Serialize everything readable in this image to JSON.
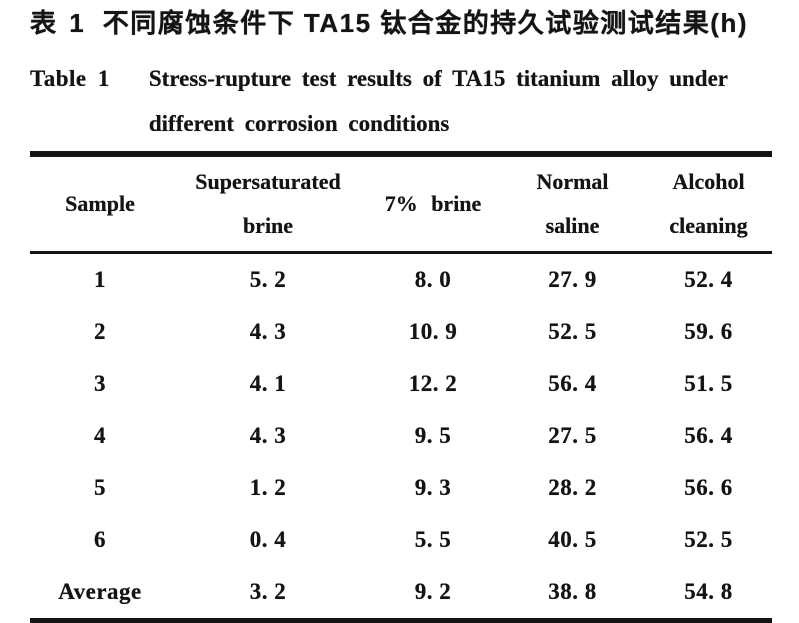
{
  "page": {
    "background": "#ffffff",
    "ink_color": "#141414"
  },
  "caption_cn": {
    "label": "表 1",
    "text": "不同腐蚀条件下 TA15 钛合金的持久试验测试结果(h)"
  },
  "caption_en": {
    "label": "Table 1",
    "line1": "Stress-rupture test results of TA15 titanium alloy under",
    "line2": "different corrosion conditions"
  },
  "table": {
    "headers": [
      {
        "line1": "Sample",
        "line2": ""
      },
      {
        "line1": "Supersaturated",
        "line2": "brine"
      },
      {
        "line1": "7% brine",
        "line2": ""
      },
      {
        "line1": "Normal",
        "line2": "saline"
      },
      {
        "line1": "Alcohol",
        "line2": "cleaning"
      }
    ],
    "rows": [
      {
        "cells": [
          "1",
          "5. 2",
          "8. 0",
          "27. 9",
          "52. 4"
        ]
      },
      {
        "cells": [
          "2",
          "4. 3",
          "10. 9",
          "52. 5",
          "59. 6"
        ]
      },
      {
        "cells": [
          "3",
          "4. 1",
          "12. 2",
          "56. 4",
          "51. 5"
        ]
      },
      {
        "cells": [
          "4",
          "4. 3",
          "9. 5",
          "27. 5",
          "56. 4"
        ]
      },
      {
        "cells": [
          "5",
          "1. 2",
          "9. 3",
          "28. 2",
          "56. 6"
        ]
      },
      {
        "cells": [
          "6",
          "0. 4",
          "5. 5",
          "40. 5",
          "52. 5"
        ]
      },
      {
        "cells": [
          "Average",
          "3. 2",
          "9. 2",
          "38. 8",
          "54. 8"
        ]
      }
    ]
  },
  "chart_data": {
    "type": "table",
    "title_cn": "表 1 不同腐蚀条件下 TA15 钛合金的持久试验测试结果(h)",
    "title_en": "Table 1 Stress-rupture test results of TA15 titanium alloy under different corrosion conditions",
    "unit": "h",
    "columns": [
      "Sample",
      "Supersaturated brine",
      "7% brine",
      "Normal saline",
      "Alcohol cleaning"
    ],
    "samples": [
      "1",
      "2",
      "3",
      "4",
      "5",
      "6",
      "Average"
    ],
    "series": [
      {
        "name": "Supersaturated brine",
        "values": [
          5.2,
          4.3,
          4.1,
          4.3,
          1.2,
          0.4,
          3.2
        ]
      },
      {
        "name": "7% brine",
        "values": [
          8.0,
          10.9,
          12.2,
          9.5,
          9.3,
          5.5,
          9.2
        ]
      },
      {
        "name": "Normal saline",
        "values": [
          27.9,
          52.5,
          56.4,
          27.5,
          28.2,
          40.5,
          38.8
        ]
      },
      {
        "name": "Alcohol cleaning",
        "values": [
          52.4,
          59.6,
          51.5,
          56.4,
          56.6,
          52.5,
          54.8
        ]
      }
    ]
  }
}
